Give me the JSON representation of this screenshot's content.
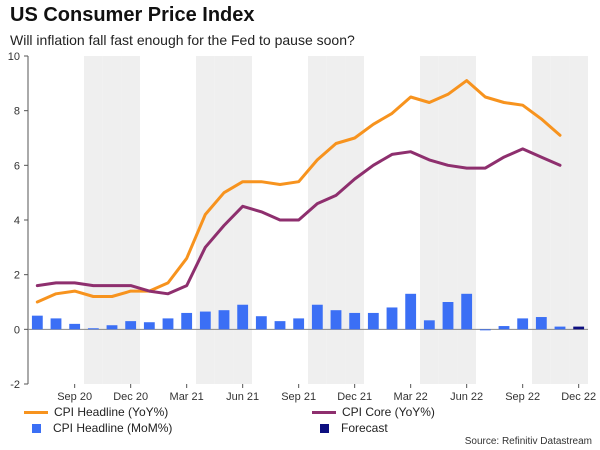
{
  "chart_data": {
    "type": "bar+line",
    "title": "US Consumer Price Index",
    "subtitle": "Will inflation fall fast enough for the Fed to pause soon?",
    "source": "Source: Refinitiv Datastream",
    "ylim": [
      -2,
      10
    ],
    "yticks": [
      -2,
      0,
      2,
      4,
      6,
      8,
      10
    ],
    "months": [
      "Jul 20",
      "Aug 20",
      "Sep 20",
      "Oct 20",
      "Nov 20",
      "Dec 20",
      "Jan 21",
      "Feb 21",
      "Mar 21",
      "Apr 21",
      "May 21",
      "Jun 21",
      "Jul 21",
      "Aug 21",
      "Sep 21",
      "Oct 21",
      "Nov 21",
      "Dec 21",
      "Jan 22",
      "Feb 22",
      "Mar 22",
      "Apr 22",
      "May 22",
      "Jun 22",
      "Jul 22",
      "Aug 22",
      "Sep 22",
      "Oct 22",
      "Nov 22",
      "Dec 22"
    ],
    "xtick_labels": [
      {
        "index": 2,
        "label": "Sep 20"
      },
      {
        "index": 5,
        "label": "Dec 20"
      },
      {
        "index": 8,
        "label": "Mar 21"
      },
      {
        "index": 11,
        "label": "Jun 21"
      },
      {
        "index": 14,
        "label": "Sep 21"
      },
      {
        "index": 17,
        "label": "Dec 21"
      },
      {
        "index": 20,
        "label": "Mar 22"
      },
      {
        "index": 23,
        "label": "Jun 22"
      },
      {
        "index": 26,
        "label": "Sep 22"
      },
      {
        "index": 29,
        "label": "Dec 22"
      }
    ],
    "shaded_month_indices": [
      3,
      4,
      5,
      9,
      10,
      11,
      15,
      16,
      17,
      21,
      22,
      23,
      27,
      28,
      29
    ],
    "series": [
      {
        "name": "CPI Headline (YoY%)",
        "kind": "line",
        "color": "#f7931e",
        "start_index": 0,
        "values": [
          1.0,
          1.3,
          1.4,
          1.2,
          1.2,
          1.4,
          1.4,
          1.7,
          2.6,
          4.2,
          5.0,
          5.4,
          5.4,
          5.3,
          5.4,
          6.2,
          6.8,
          7.0,
          7.5,
          7.9,
          8.5,
          8.3,
          8.6,
          9.1,
          8.5,
          8.3,
          8.2,
          7.7,
          7.1
        ]
      },
      {
        "name": "CPI Core (YoY%)",
        "kind": "line",
        "color": "#8e2f6e",
        "start_index": 0,
        "values": [
          1.6,
          1.7,
          1.7,
          1.6,
          1.6,
          1.6,
          1.4,
          1.3,
          1.6,
          3.0,
          3.8,
          4.5,
          4.3,
          4.0,
          4.0,
          4.6,
          4.9,
          5.5,
          6.0,
          6.4,
          6.5,
          6.2,
          6.0,
          5.9,
          5.9,
          6.3,
          6.6,
          6.3,
          6.0
        ]
      },
      {
        "name": "CPI Headline (MoM%)",
        "kind": "bar",
        "color": "#3b6ff5",
        "start_index": 0,
        "values": [
          0.5,
          0.4,
          0.2,
          0.04,
          0.15,
          0.3,
          0.26,
          0.4,
          0.6,
          0.65,
          0.7,
          0.9,
          0.48,
          0.3,
          0.4,
          0.9,
          0.7,
          0.6,
          0.6,
          0.8,
          1.3,
          0.33,
          1.0,
          1.3,
          -0.02,
          0.12,
          0.4,
          0.45,
          0.1
        ]
      },
      {
        "name": "Forecast",
        "kind": "bar",
        "color": "#0d0f80",
        "start_index": 29,
        "values": [
          0.1
        ]
      }
    ]
  }
}
